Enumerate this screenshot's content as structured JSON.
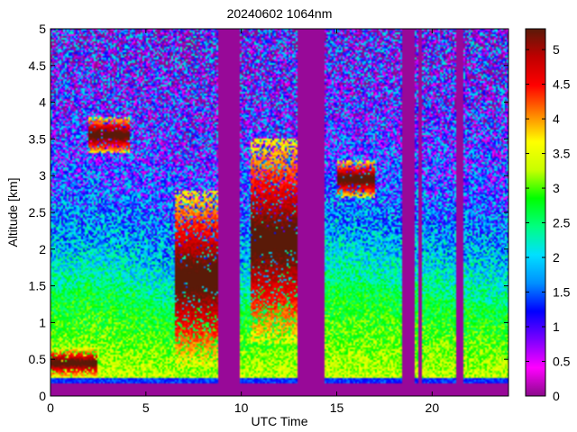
{
  "chart_data": {
    "type": "heatmap",
    "title": "20240602 1064nm",
    "xlabel": "UTC Time",
    "ylabel": "Altitude [km]",
    "xlim": [
      0,
      24
    ],
    "ylim": [
      0,
      5
    ],
    "xticks": [
      "0",
      "5",
      "10",
      "15",
      "20"
    ],
    "yticks": [
      "0",
      "0.5",
      "1",
      "1.5",
      "2",
      "2.5",
      "3",
      "3.5",
      "4",
      "4.5",
      "5"
    ],
    "colorbar": {
      "range": [
        0,
        5.3
      ],
      "ticks": [
        "0",
        "0.5",
        "1",
        "1.5",
        "2",
        "2.5",
        "3",
        "3.5",
        "4",
        "4.5",
        "5"
      ],
      "colormap": [
        "#8a0a8a",
        "#ff00ff",
        "#7a00ff",
        "#0000ff",
        "#0090ff",
        "#00e0ff",
        "#00ff80",
        "#00ff00",
        "#c8ff00",
        "#ffff00",
        "#ff8000",
        "#ff0000",
        "#c00000",
        "#5a1a08"
      ]
    },
    "no_data_intervals": [
      [
        8.8,
        9.9
      ],
      [
        12.9,
        14.4
      ],
      [
        18.4,
        19.1
      ],
      [
        19.3,
        19.5
      ],
      [
        21.3,
        21.6
      ]
    ],
    "ground_level_km": 0.2,
    "cloud_layers": [
      {
        "start": 2.0,
        "end": 4.2,
        "base_km": 3.3,
        "top_km": 3.8
      },
      {
        "start": 6.5,
        "end": 9.0,
        "base_km": 0.4,
        "top_km": 2.8
      },
      {
        "start": 10.5,
        "end": 12.9,
        "base_km": 0.7,
        "top_km": 3.5
      },
      {
        "start": 15.0,
        "end": 17.0,
        "base_km": 2.7,
        "top_km": 3.2
      },
      {
        "start": 0.0,
        "end": 2.5,
        "base_km": 0.25,
        "top_km": 0.65
      }
    ],
    "boundary_layer_top_km": [
      [
        0,
        1.4
      ],
      [
        2,
        1.5
      ],
      [
        4,
        1.4
      ],
      [
        6,
        1.2
      ],
      [
        7,
        1.0
      ],
      [
        9,
        1.1
      ],
      [
        10,
        1.2
      ],
      [
        12,
        1.3
      ],
      [
        15,
        1.6
      ],
      [
        17,
        1.5
      ],
      [
        19,
        1.4
      ],
      [
        22,
        1.3
      ],
      [
        24,
        1.2
      ]
    ]
  }
}
